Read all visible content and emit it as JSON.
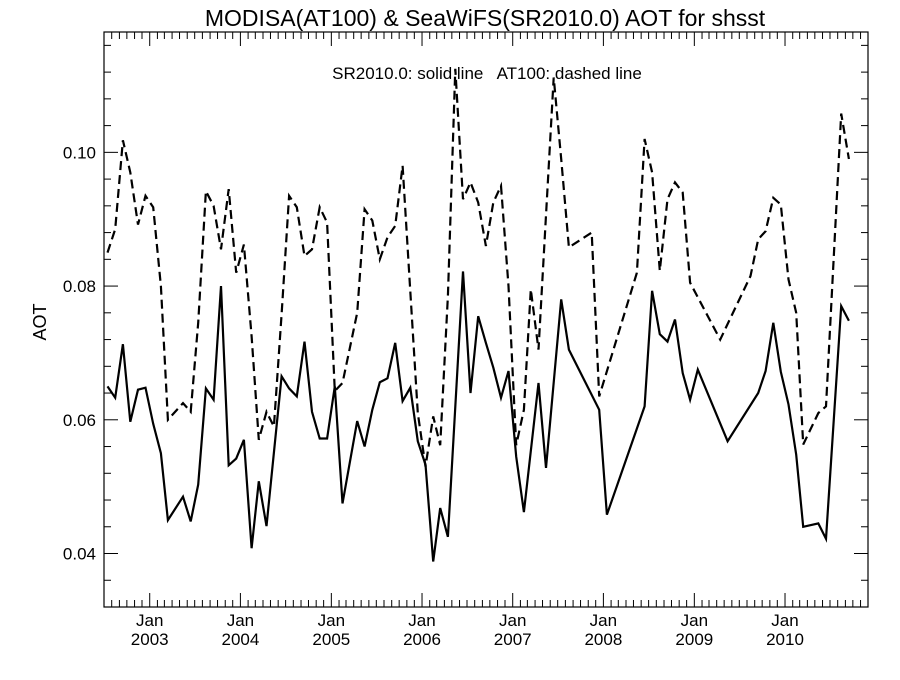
{
  "chart_data": {
    "type": "line",
    "title": "MODISA(AT100) & SeaWiFS(SR2010.0)  AOT for shsst",
    "ylabel": "AOT",
    "xlabel": "",
    "annotation": "SR2010.0: solid line   AT100: dashed line",
    "xlim": [
      "2002-07-01",
      "2010-12-01"
    ],
    "ylim": [
      0.032,
      0.118
    ],
    "yticks": [
      0.04,
      0.06,
      0.08,
      0.1
    ],
    "ytick_labels": [
      "0.04",
      "0.06",
      "0.08",
      "0.10"
    ],
    "xticks": [
      "2003-01-01",
      "2004-01-01",
      "2005-01-01",
      "2006-01-01",
      "2007-01-01",
      "2008-01-01",
      "2009-01-01",
      "2010-01-01"
    ],
    "xtick_labels": [
      {
        "month": "Jan",
        "year": "2003"
      },
      {
        "month": "Jan",
        "year": "2004"
      },
      {
        "month": "Jan",
        "year": "2005"
      },
      {
        "month": "Jan",
        "year": "2006"
      },
      {
        "month": "Jan",
        "year": "2007"
      },
      {
        "month": "Jan",
        "year": "2008"
      },
      {
        "month": "Jan",
        "year": "2009"
      },
      {
        "month": "Jan",
        "year": "2010"
      }
    ],
    "grid": false,
    "series": [
      {
        "name": "SR2010.0",
        "style": "solid",
        "color": "#000000",
        "points": [
          [
            "2002-07-15",
            0.065
          ],
          [
            "2002-08-15",
            0.0633
          ],
          [
            "2002-09-15",
            0.0713
          ],
          [
            "2002-10-15",
            0.0597
          ],
          [
            "2002-11-15",
            0.0645
          ],
          [
            "2002-12-15",
            0.0648
          ],
          [
            "2003-01-15",
            0.0594
          ],
          [
            "2003-02-15",
            0.055
          ],
          [
            "2003-03-15",
            0.045
          ],
          [
            "2003-05-15",
            0.0485
          ],
          [
            "2003-06-15",
            0.0448
          ],
          [
            "2003-07-15",
            0.0503
          ],
          [
            "2003-08-15",
            0.0647
          ],
          [
            "2003-09-15",
            0.063
          ],
          [
            "2003-10-15",
            0.08
          ],
          [
            "2003-11-15",
            0.0532
          ],
          [
            "2003-12-15",
            0.0542
          ],
          [
            "2004-01-15",
            0.057
          ],
          [
            "2004-02-15",
            0.0408
          ],
          [
            "2004-03-15",
            0.0508
          ],
          [
            "2004-04-15",
            0.0441
          ],
          [
            "2004-06-15",
            0.0665
          ],
          [
            "2004-07-15",
            0.0647
          ],
          [
            "2004-08-15",
            0.0635
          ],
          [
            "2004-09-15",
            0.0717
          ],
          [
            "2004-10-15",
            0.0612
          ],
          [
            "2004-11-15",
            0.0572
          ],
          [
            "2004-12-15",
            0.0572
          ],
          [
            "2005-01-15",
            0.065
          ],
          [
            "2005-02-15",
            0.0475
          ],
          [
            "2005-04-15",
            0.0598
          ],
          [
            "2005-05-15",
            0.056
          ],
          [
            "2005-06-15",
            0.0615
          ],
          [
            "2005-07-15",
            0.0656
          ],
          [
            "2005-08-15",
            0.0662
          ],
          [
            "2005-09-15",
            0.0715
          ],
          [
            "2005-10-15",
            0.0628
          ],
          [
            "2005-11-15",
            0.0648
          ],
          [
            "2005-12-15",
            0.0568
          ],
          [
            "2006-01-15",
            0.0533
          ],
          [
            "2006-02-15",
            0.0388
          ],
          [
            "2006-03-15",
            0.0468
          ],
          [
            "2006-04-15",
            0.0425
          ],
          [
            "2006-06-15",
            0.0822
          ],
          [
            "2006-07-15",
            0.064
          ],
          [
            "2006-08-15",
            0.0755
          ],
          [
            "2006-09-15",
            0.0715
          ],
          [
            "2006-10-15",
            0.0678
          ],
          [
            "2006-11-15",
            0.0633
          ],
          [
            "2006-12-15",
            0.0673
          ],
          [
            "2007-01-15",
            0.0545
          ],
          [
            "2007-02-15",
            0.0462
          ],
          [
            "2007-04-15",
            0.0655
          ],
          [
            "2007-05-15",
            0.0528
          ],
          [
            "2007-07-15",
            0.078
          ],
          [
            "2007-08-15",
            0.0705
          ],
          [
            "2007-12-15",
            0.0615
          ],
          [
            "2008-01-15",
            0.0458
          ],
          [
            "2008-06-15",
            0.062
          ],
          [
            "2008-07-15",
            0.0793
          ],
          [
            "2008-08-15",
            0.0728
          ],
          [
            "2008-09-15",
            0.0717
          ],
          [
            "2008-10-15",
            0.075
          ],
          [
            "2008-11-15",
            0.067
          ],
          [
            "2008-12-15",
            0.063
          ],
          [
            "2009-01-15",
            0.0675
          ],
          [
            "2009-05-15",
            0.0568
          ],
          [
            "2009-09-15",
            0.064
          ],
          [
            "2009-10-15",
            0.0673
          ],
          [
            "2009-11-15",
            0.0745
          ],
          [
            "2009-12-15",
            0.0672
          ],
          [
            "2010-01-15",
            0.0623
          ],
          [
            "2010-02-15",
            0.0548
          ],
          [
            "2010-03-15",
            0.044
          ],
          [
            "2010-05-15",
            0.0445
          ],
          [
            "2010-06-15",
            0.0422
          ],
          [
            "2010-08-15",
            0.077
          ],
          [
            "2010-09-15",
            0.0748
          ]
        ]
      },
      {
        "name": "AT100",
        "style": "dashed",
        "color": "#000000",
        "points": [
          [
            "2002-07-15",
            0.085
          ],
          [
            "2002-08-15",
            0.0885
          ],
          [
            "2002-09-15",
            0.1018
          ],
          [
            "2002-10-15",
            0.097
          ],
          [
            "2002-11-15",
            0.0892
          ],
          [
            "2002-12-15",
            0.0935
          ],
          [
            "2003-01-15",
            0.0918
          ],
          [
            "2003-02-15",
            0.08
          ],
          [
            "2003-03-15",
            0.06
          ],
          [
            "2003-05-15",
            0.0625
          ],
          [
            "2003-06-15",
            0.0612
          ],
          [
            "2003-07-15",
            0.0745
          ],
          [
            "2003-08-15",
            0.0942
          ],
          [
            "2003-09-15",
            0.092
          ],
          [
            "2003-10-15",
            0.0855
          ],
          [
            "2003-11-15",
            0.0945
          ],
          [
            "2003-12-15",
            0.082
          ],
          [
            "2004-01-15",
            0.0862
          ],
          [
            "2004-02-15",
            0.0725
          ],
          [
            "2004-03-15",
            0.057
          ],
          [
            "2004-04-15",
            0.0612
          ],
          [
            "2004-05-15",
            0.059
          ],
          [
            "2004-06-15",
            0.0758
          ],
          [
            "2004-07-15",
            0.0935
          ],
          [
            "2004-08-15",
            0.0918
          ],
          [
            "2004-09-15",
            0.0845
          ],
          [
            "2004-10-15",
            0.0855
          ],
          [
            "2004-11-15",
            0.0918
          ],
          [
            "2004-12-15",
            0.0895
          ],
          [
            "2005-01-15",
            0.0643
          ],
          [
            "2005-02-15",
            0.0655
          ],
          [
            "2005-04-15",
            0.076
          ],
          [
            "2005-05-15",
            0.0915
          ],
          [
            "2005-06-15",
            0.0898
          ],
          [
            "2005-07-15",
            0.084
          ],
          [
            "2005-08-15",
            0.0873
          ],
          [
            "2005-09-15",
            0.089
          ],
          [
            "2005-10-15",
            0.098
          ],
          [
            "2005-11-15",
            0.0792
          ],
          [
            "2005-12-15",
            0.061
          ],
          [
            "2006-01-15",
            0.053
          ],
          [
            "2006-02-15",
            0.0605
          ],
          [
            "2006-03-15",
            0.0562
          ],
          [
            "2006-04-15",
            0.0785
          ],
          [
            "2006-05-15",
            0.1125
          ],
          [
            "2006-06-15",
            0.093
          ],
          [
            "2006-07-15",
            0.0955
          ],
          [
            "2006-08-15",
            0.0925
          ],
          [
            "2006-09-15",
            0.086
          ],
          [
            "2006-10-15",
            0.0925
          ],
          [
            "2006-11-15",
            0.095
          ],
          [
            "2006-12-15",
            0.08
          ],
          [
            "2007-01-15",
            0.0562
          ],
          [
            "2007-02-15",
            0.0615
          ],
          [
            "2007-03-15",
            0.0795
          ],
          [
            "2007-04-15",
            0.0705
          ],
          [
            "2007-06-15",
            0.1112
          ],
          [
            "2007-07-15",
            0.099
          ],
          [
            "2007-08-15",
            0.0858
          ],
          [
            "2007-11-15",
            0.088
          ],
          [
            "2007-12-15",
            0.0635
          ],
          [
            "2008-05-15",
            0.082
          ],
          [
            "2008-06-15",
            0.102
          ],
          [
            "2008-07-15",
            0.097
          ],
          [
            "2008-08-15",
            0.0823
          ],
          [
            "2008-09-15",
            0.093
          ],
          [
            "2008-10-15",
            0.0955
          ],
          [
            "2008-11-15",
            0.094
          ],
          [
            "2008-12-15",
            0.0805
          ],
          [
            "2009-04-15",
            0.072
          ],
          [
            "2009-08-15",
            0.0815
          ],
          [
            "2009-09-15",
            0.087
          ],
          [
            "2009-10-15",
            0.0882
          ],
          [
            "2009-11-15",
            0.0932
          ],
          [
            "2009-12-15",
            0.0922
          ],
          [
            "2010-01-15",
            0.081
          ],
          [
            "2010-02-15",
            0.076
          ],
          [
            "2010-03-15",
            0.0563
          ],
          [
            "2010-05-15",
            0.061
          ],
          [
            "2010-06-15",
            0.062
          ],
          [
            "2010-08-15",
            0.1058
          ],
          [
            "2010-09-15",
            0.099
          ]
        ]
      }
    ]
  }
}
